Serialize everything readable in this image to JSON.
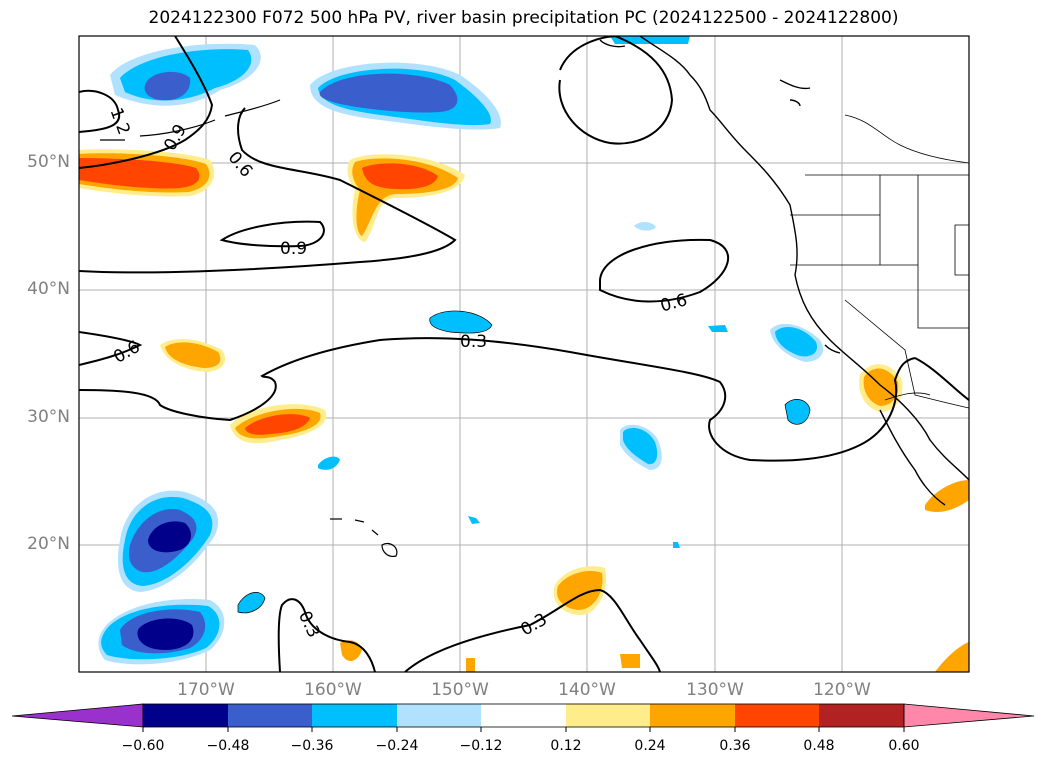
{
  "title": "2024122300 F072 500 hPa PV, river basin precipitation PC (2024122500 - 2024122800)",
  "map": {
    "lon_range": [
      -180,
      -110
    ],
    "lat_range": [
      10,
      60
    ],
    "lat_ticks": [
      {
        "value": 50,
        "label": "50°N"
      },
      {
        "value": 40,
        "label": "40°N"
      },
      {
        "value": 30,
        "label": "30°N"
      },
      {
        "value": 20,
        "label": "20°N"
      }
    ],
    "lon_ticks": [
      {
        "value": -170,
        "label": "170°W"
      },
      {
        "value": -160,
        "label": "160°W"
      },
      {
        "value": -150,
        "label": "150°W"
      },
      {
        "value": -140,
        "label": "140°W"
      },
      {
        "value": -130,
        "label": "130°W"
      },
      {
        "value": -120,
        "label": "120°W"
      }
    ],
    "contour_labels": [
      "1.2",
      "0.9",
      "0.6",
      "0.9",
      "0.6",
      "0.6",
      "0.3",
      "0.3",
      "0.3"
    ]
  },
  "colorbar": {
    "colors": [
      "#9932cc",
      "#00008b",
      "#3a5fcd",
      "#00bfff",
      "#b0e2ff",
      "#ffffff",
      "#ffec8b",
      "#ffa500",
      "#ff4500",
      "#b22222",
      "#ff88aa"
    ],
    "tick_labels": [
      "−0.60",
      "−0.48",
      "−0.36",
      "−0.24",
      "−0.12",
      "0.12",
      "0.24",
      "0.36",
      "0.48",
      "0.60"
    ]
  }
}
